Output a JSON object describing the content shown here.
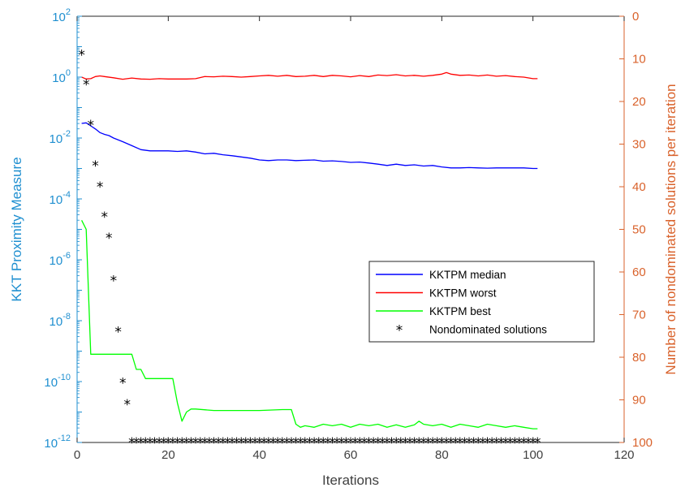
{
  "chart_data": {
    "type": "line",
    "xlabel": "Iterations",
    "ylabel_left": "KKT Proximity Measure",
    "ylabel_right": "Number of nondominated solutions per iteration",
    "xlim": [
      0,
      120
    ],
    "xticks": [
      0,
      20,
      40,
      60,
      80,
      100,
      120
    ],
    "ylim_left_log10": [
      -12,
      2
    ],
    "yscale_left": "log",
    "yticks_left": [
      {
        "base": "10",
        "exp": "2"
      },
      {
        "base": "10",
        "exp": "0"
      },
      {
        "base": "10",
        "exp": "-2"
      },
      {
        "base": "10",
        "exp": "-4"
      },
      {
        "base": "10",
        "exp": "-6"
      },
      {
        "base": "10",
        "exp": "-8"
      },
      {
        "base": "10",
        "exp": "-10"
      },
      {
        "base": "10",
        "exp": "-12"
      }
    ],
    "yticks_left_log10": [
      2,
      0,
      -2,
      -4,
      -6,
      -8,
      -10,
      -12
    ],
    "ylim_right": [
      0,
      100
    ],
    "yaxis_right_reversed": true,
    "yticks_right": [
      0,
      10,
      20,
      30,
      40,
      50,
      60,
      70,
      80,
      90,
      100
    ],
    "grid": false,
    "legend_position": "center-right",
    "colors": {
      "left_axis": "#1f8fd0",
      "right_axis": "#d9622b",
      "median": "#0000ff",
      "worst": "#ff0000",
      "best": "#00ff00",
      "markers": "#000000"
    },
    "legend": [
      {
        "key": "median",
        "label": "KKTPM median"
      },
      {
        "key": "worst",
        "label": "KKTPM worst"
      },
      {
        "key": "best",
        "label": "KKTPM best"
      },
      {
        "key": "nondominated",
        "label": "Nondominated solutions"
      }
    ],
    "series": [
      {
        "key": "worst",
        "axis": "left",
        "style": "line",
        "x": [
          1,
          2,
          3,
          4,
          5,
          6,
          8,
          10,
          12,
          14,
          16,
          18,
          20,
          22,
          24,
          26,
          28,
          30,
          32,
          34,
          36,
          38,
          40,
          42,
          44,
          46,
          48,
          50,
          52,
          54,
          56,
          58,
          60,
          62,
          64,
          66,
          68,
          70,
          72,
          74,
          76,
          78,
          80,
          81,
          82,
          84,
          86,
          88,
          90,
          92,
          94,
          96,
          98,
          100,
          101
        ],
        "y_log10": [
          0.0,
          -0.06,
          -0.05,
          0.02,
          0.04,
          0.02,
          -0.02,
          -0.07,
          -0.03,
          -0.06,
          -0.07,
          -0.05,
          -0.06,
          -0.06,
          -0.06,
          -0.05,
          0.02,
          0.01,
          0.03,
          0.02,
          0.0,
          0.02,
          0.04,
          0.06,
          0.03,
          0.06,
          0.02,
          0.03,
          0.06,
          0.02,
          0.06,
          0.04,
          0.01,
          0.05,
          0.02,
          0.07,
          0.05,
          0.08,
          0.04,
          0.06,
          0.03,
          0.06,
          0.1,
          0.15,
          0.1,
          0.06,
          0.07,
          0.04,
          0.07,
          0.03,
          0.05,
          0.02,
          0.0,
          -0.05,
          -0.05
        ]
      },
      {
        "key": "median",
        "axis": "left",
        "style": "line",
        "x": [
          1,
          2,
          3,
          4,
          5,
          6,
          7,
          8,
          10,
          12,
          14,
          16,
          18,
          20,
          22,
          24,
          26,
          28,
          30,
          32,
          34,
          36,
          38,
          40,
          42,
          44,
          46,
          48,
          50,
          52,
          54,
          56,
          58,
          60,
          62,
          64,
          66,
          68,
          70,
          72,
          74,
          76,
          78,
          80,
          82,
          84,
          86,
          88,
          90,
          92,
          94,
          96,
          98,
          100,
          101
        ],
        "y_log10": [
          -1.52,
          -1.5,
          -1.6,
          -1.7,
          -1.82,
          -1.88,
          -1.92,
          -2.0,
          -2.12,
          -2.25,
          -2.38,
          -2.42,
          -2.42,
          -2.42,
          -2.44,
          -2.42,
          -2.46,
          -2.52,
          -2.5,
          -2.55,
          -2.58,
          -2.62,
          -2.66,
          -2.72,
          -2.74,
          -2.72,
          -2.72,
          -2.74,
          -2.73,
          -2.72,
          -2.76,
          -2.75,
          -2.77,
          -2.8,
          -2.79,
          -2.82,
          -2.86,
          -2.9,
          -2.86,
          -2.9,
          -2.88,
          -2.92,
          -2.9,
          -2.95,
          -2.98,
          -2.98,
          -2.97,
          -2.98,
          -2.99,
          -2.98,
          -2.98,
          -2.98,
          -2.98,
          -3.0,
          -3.0
        ]
      },
      {
        "key": "best",
        "axis": "left",
        "style": "line",
        "x": [
          1,
          2,
          3,
          4,
          11,
          12,
          13,
          14,
          15,
          16,
          21,
          22,
          23,
          24,
          25,
          26,
          30,
          35,
          40,
          45,
          47,
          48,
          49,
          50,
          52,
          54,
          56,
          58,
          60,
          62,
          64,
          66,
          68,
          70,
          72,
          74,
          75,
          76,
          78,
          80,
          82,
          84,
          86,
          88,
          90,
          92,
          94,
          96,
          98,
          100,
          101
        ],
        "y_log10": [
          -4.7,
          -5.0,
          -9.1,
          -9.1,
          -9.1,
          -9.1,
          -9.6,
          -9.6,
          -9.9,
          -9.9,
          -9.9,
          -10.7,
          -11.3,
          -11.0,
          -10.9,
          -10.9,
          -10.95,
          -10.95,
          -10.95,
          -10.92,
          -10.92,
          -11.4,
          -11.5,
          -11.45,
          -11.5,
          -11.4,
          -11.45,
          -11.4,
          -11.5,
          -11.4,
          -11.45,
          -11.4,
          -11.5,
          -11.42,
          -11.5,
          -11.42,
          -11.3,
          -11.4,
          -11.45,
          -11.4,
          -11.5,
          -11.4,
          -11.45,
          -11.5,
          -11.4,
          -11.45,
          -11.5,
          -11.45,
          -11.5,
          -11.55,
          -11.55
        ]
      },
      {
        "key": "nondominated",
        "axis": "right",
        "style": "marker",
        "x": [
          1,
          2,
          3,
          4,
          5,
          6,
          7,
          8,
          9,
          10,
          11,
          12,
          13,
          14,
          15,
          16,
          17,
          18,
          19,
          20,
          21,
          22,
          23,
          24,
          25,
          26,
          27,
          28,
          29,
          30,
          31,
          32,
          33,
          34,
          35,
          36,
          37,
          38,
          39,
          40,
          41,
          42,
          43,
          44,
          45,
          46,
          47,
          48,
          49,
          50,
          51,
          52,
          53,
          54,
          55,
          56,
          57,
          58,
          59,
          60,
          61,
          62,
          63,
          64,
          65,
          66,
          67,
          68,
          69,
          70,
          71,
          72,
          73,
          74,
          75,
          76,
          77,
          78,
          79,
          80,
          81,
          82,
          83,
          84,
          85,
          86,
          87,
          88,
          89,
          90,
          91,
          92,
          93,
          94,
          95,
          96,
          97,
          98,
          99,
          100,
          101
        ],
        "y": [
          9,
          16,
          25.5,
          35,
          40,
          47,
          52,
          62,
          74,
          86,
          91,
          100,
          100,
          100,
          100,
          100,
          100,
          100,
          100,
          100,
          100,
          100,
          100,
          100,
          100,
          100,
          100,
          100,
          100,
          100,
          100,
          100,
          100,
          100,
          100,
          100,
          100,
          100,
          100,
          100,
          100,
          100,
          100,
          100,
          100,
          100,
          100,
          100,
          100,
          100,
          100,
          100,
          100,
          100,
          100,
          100,
          100,
          100,
          100,
          100,
          100,
          100,
          100,
          100,
          100,
          100,
          100,
          100,
          100,
          100,
          100,
          100,
          100,
          100,
          100,
          100,
          100,
          100,
          100,
          100,
          100,
          100,
          100,
          100,
          100,
          100,
          100,
          100,
          100,
          100,
          100,
          100,
          100,
          100,
          100,
          100,
          100,
          100,
          100,
          100,
          100
        ]
      }
    ]
  }
}
